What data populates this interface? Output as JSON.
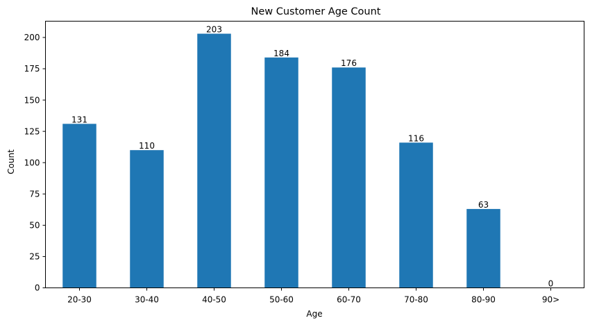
{
  "chart_data": {
    "type": "bar",
    "title": "New Customer Age Count",
    "xlabel": "Age",
    "ylabel": "Count",
    "categories": [
      "20-30",
      "30-40",
      "40-50",
      "50-60",
      "60-70",
      "70-80",
      "80-90",
      "90>"
    ],
    "values": [
      131,
      110,
      203,
      184,
      176,
      116,
      63,
      0
    ],
    "data_labels": [
      "131",
      "110",
      "203",
      "184",
      "176",
      "116",
      "63",
      "0"
    ],
    "ylim": [
      0,
      213
    ],
    "yticks": [
      0,
      25,
      50,
      75,
      100,
      125,
      150,
      175,
      200
    ],
    "ytick_labels": [
      "0",
      "25",
      "50",
      "75",
      "100",
      "125",
      "150",
      "175",
      "200"
    ],
    "grid": false,
    "legend": "none",
    "bar_color": "#1f77b4"
  }
}
